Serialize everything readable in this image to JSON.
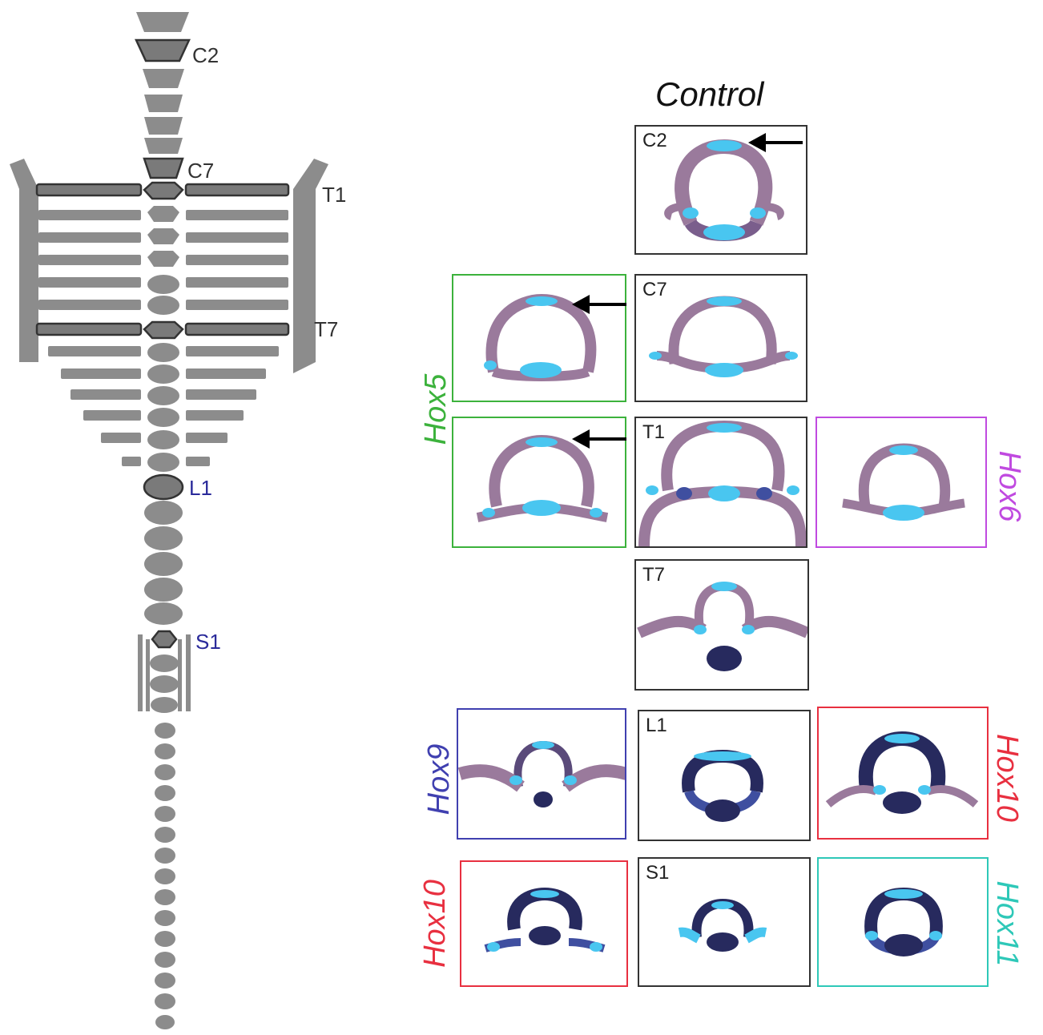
{
  "spine_labels": {
    "c2": "C2",
    "c7": "C7",
    "t1": "T1",
    "t7": "T7",
    "l1": "L1",
    "s1": "S1"
  },
  "control_title": "Control",
  "panel_labels": {
    "c2": "C2",
    "c7": "C7",
    "t1": "T1",
    "t7": "T7",
    "l1": "L1",
    "s1": "S1"
  },
  "hox_labels": {
    "hox5": "Hox5",
    "hox6": "Hox6",
    "hox9": "Hox9",
    "hox10_right": "Hox10",
    "hox10_left": "Hox10",
    "hox11": "Hox11"
  },
  "colors": {
    "hox5": "#3cb23c",
    "hox6": "#c04ae0",
    "hox9": "#4040b0",
    "hox10": "#e83040",
    "hox11": "#2ec8b8",
    "control": "#333333",
    "bone_pink": "#9a7a9c",
    "cartilage_blue": "#49c6f0",
    "ossified_navy": "#272a5e",
    "spine_gray": "#8c8c8c"
  }
}
